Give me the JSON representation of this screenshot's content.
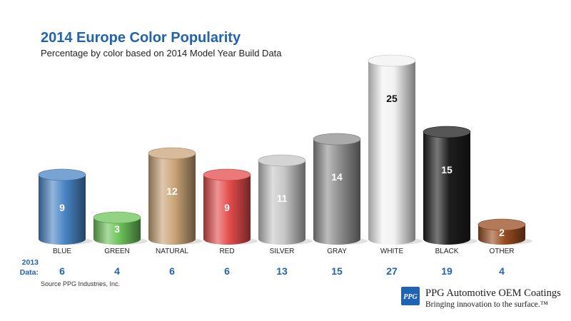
{
  "chart_data": {
    "type": "bar",
    "title": "2014 Europe Color Popularity",
    "subtitle": "Percentage by color based on 2014 Model Year Build Data",
    "categories": [
      "BLUE",
      "GREEN",
      "NATURAL",
      "RED",
      "SILVER",
      "GRAY",
      "WHITE",
      "BLACK",
      "OTHER"
    ],
    "series": [
      {
        "values": [
          9,
          3,
          12,
          9,
          11,
          14,
          25,
          15,
          2
        ]
      }
    ],
    "bar_colors": [
      "#4a86c6",
      "#6cc35a",
      "#c9a478",
      "#e54c4c",
      "#c6c6c6",
      "#8f8f8f",
      "#f2f2f2",
      "#1e1e1e",
      "#9a4d22"
    ],
    "label_colors": [
      "#ffffff",
      "#ffffff",
      "#ffffff",
      "#ffffff",
      "#ffffff",
      "#ffffff",
      "#111111",
      "#ffffff",
      "#ffffff"
    ],
    "prev_year_label": [
      "2013",
      "Data:"
    ],
    "prev_year_values": [
      6,
      4,
      6,
      6,
      13,
      15,
      27,
      19,
      4
    ],
    "ylim": [
      0,
      25
    ],
    "grid": false,
    "legend": "none"
  },
  "footer": {
    "source": "Source PPG Industries, Inc.",
    "logo_mark": "PPG",
    "logo_name": "PPG Automotive OEM Coatings",
    "logo_tagline": "Bringing innovation to the surface.™"
  }
}
